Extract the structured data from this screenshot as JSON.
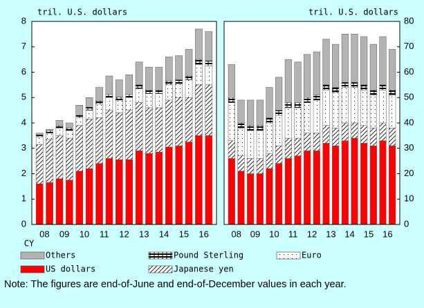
{
  "chart_data": [
    {
      "type": "bar",
      "stacked": true,
      "ylabel": "tril. U.S. dollars",
      "x_label": "CY",
      "categories": [
        "08",
        null,
        "09",
        null,
        "10",
        null,
        "11",
        null,
        "12",
        null,
        "13",
        null,
        "14",
        null,
        "15",
        null,
        "16",
        null
      ],
      "ylim": [
        0,
        8
      ],
      "yticks": [
        0,
        1,
        2,
        3,
        4,
        5,
        6,
        7,
        8
      ],
      "axis_side": "left",
      "series": [
        {
          "name": "US dollars",
          "color": "#ff0000",
          "pattern": "solid",
          "values": [
            1.6,
            1.65,
            1.8,
            1.75,
            2.1,
            2.2,
            2.4,
            2.6,
            2.55,
            2.55,
            2.9,
            2.8,
            2.85,
            3.05,
            3.1,
            3.25,
            3.5,
            3.5
          ]
        },
        {
          "name": "Japanese yen",
          "color": "#ffffff",
          "pattern": "hatch",
          "values": [
            1.55,
            1.7,
            1.7,
            1.65,
            1.8,
            1.95,
            1.8,
            1.9,
            1.85,
            1.95,
            1.9,
            1.8,
            1.75,
            1.85,
            1.9,
            1.75,
            2.0,
            2.0
          ]
        },
        {
          "name": "Euro",
          "color": "#ffffff",
          "pattern": "dots",
          "values": [
            0.3,
            0.25,
            0.3,
            0.3,
            0.3,
            0.35,
            0.55,
            0.5,
            0.5,
            0.5,
            0.55,
            0.55,
            0.55,
            0.6,
            0.55,
            0.7,
            0.8,
            0.75
          ]
        },
        {
          "name": "Pound Sterling",
          "color": "#ffffff",
          "pattern": "brick",
          "values": [
            0.08,
            0.1,
            0.1,
            0.1,
            0.12,
            0.12,
            0.12,
            0.12,
            0.12,
            0.12,
            0.15,
            0.15,
            0.15,
            0.15,
            0.15,
            0.15,
            0.2,
            0.2
          ]
        },
        {
          "name": "Others",
          "color": "#b3b3b3",
          "pattern": "solid",
          "values": [
            0.07,
            0.05,
            0.2,
            0.2,
            0.38,
            0.38,
            0.53,
            0.73,
            0.68,
            0.78,
            0.9,
            0.9,
            0.9,
            0.95,
            0.95,
            1.05,
            1.2,
            1.15
          ]
        }
      ]
    },
    {
      "type": "bar",
      "stacked": true,
      "ylabel": "tril. U.S. dollars",
      "categories": [
        "08",
        null,
        "09",
        null,
        "10",
        null,
        "11",
        null,
        "12",
        null,
        "13",
        null,
        "14",
        null,
        "15",
        null,
        "16",
        null
      ],
      "ylim": [
        0,
        80
      ],
      "yticks": [
        0,
        10,
        20,
        30,
        40,
        50,
        60,
        70,
        80
      ],
      "axis_side": "right",
      "series": [
        {
          "name": "US dollars",
          "color": "#ff0000",
          "pattern": "solid",
          "values": [
            26,
            21,
            20,
            20,
            22,
            24,
            26,
            27,
            29,
            29,
            32,
            31,
            33,
            34,
            32,
            31,
            33,
            31
          ]
        },
        {
          "name": "Japanese yen",
          "color": "#ffffff",
          "pattern": "hatch",
          "values": [
            7,
            6,
            6,
            6,
            6,
            7,
            8,
            7,
            7,
            7,
            7,
            7,
            7,
            6,
            7,
            7,
            7,
            7
          ]
        },
        {
          "name": "Euro",
          "color": "#ffffff",
          "pattern": "dots",
          "values": [
            15,
            11,
            11,
            11,
            12,
            12,
            12,
            12,
            12,
            13,
            14,
            14,
            14,
            14,
            14,
            13,
            13,
            13
          ]
        },
        {
          "name": "Pound Sterling",
          "color": "#ffffff",
          "pattern": "brick",
          "values": [
            2,
            2,
            2,
            2,
            2,
            2,
            2,
            2,
            2,
            2,
            2,
            2,
            2,
            2,
            2,
            2,
            2,
            2
          ]
        },
        {
          "name": "Others",
          "color": "#b3b3b3",
          "pattern": "solid",
          "values": [
            13,
            9,
            10,
            10,
            12,
            13,
            17,
            16,
            17,
            17,
            18,
            17,
            19,
            19,
            19,
            18,
            19,
            16
          ]
        }
      ]
    }
  ],
  "note": "Note: The figures are end-of-June and end-of-December values in each year."
}
